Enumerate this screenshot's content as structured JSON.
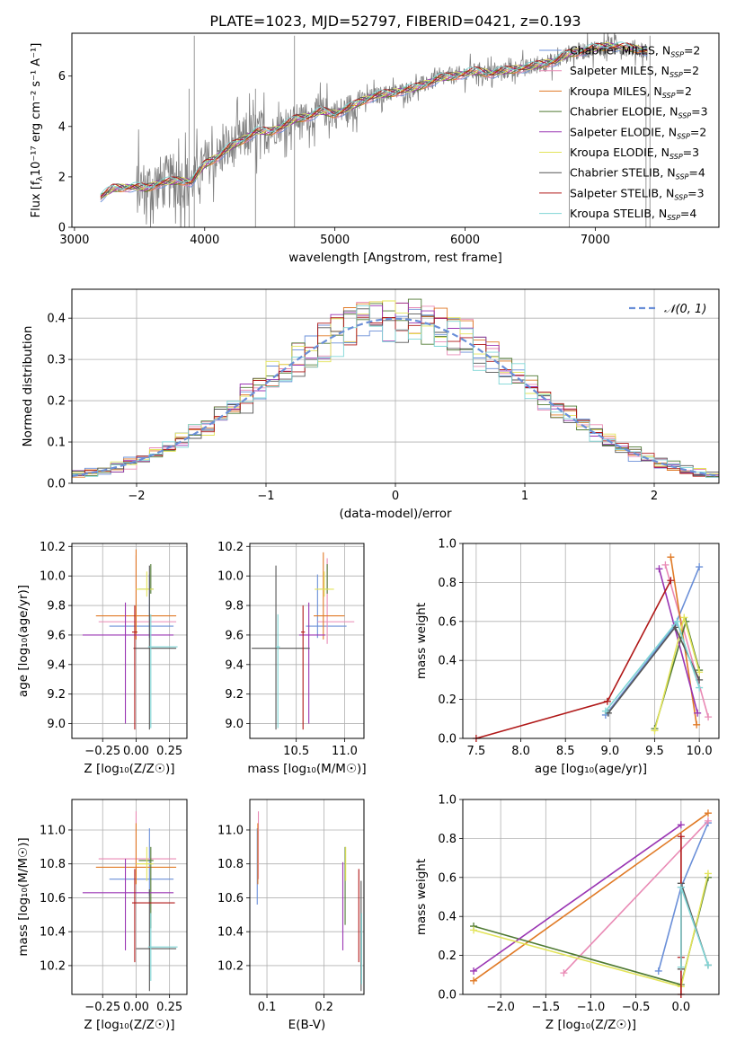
{
  "figure_title": "PLATE=1023, MJD=52797, FIBERID=0421, z=0.193",
  "colors": {
    "Chabrier MILES": "#6a8fd8",
    "Salpeter MILES": "#e98ab5",
    "Kroupa MILES": "#e07a26",
    "Chabrier ELODIE": "#4f7a33",
    "Salpeter ELODIE": "#9a35b3",
    "Kroupa ELODIE": "#e3e45a",
    "Chabrier STELIB": "#555555",
    "Salpeter STELIB": "#b01818",
    "Kroupa STELIB": "#7fd6d6",
    "data": "#808080",
    "normal": "#6a8fd8",
    "light_green": "#a6d854"
  },
  "chart_data": [
    {
      "id": "spectrum",
      "type": "line",
      "title": "PLATE=1023, MJD=52797, FIBERID=0421, z=0.193",
      "xlabel": "wavelength [Angstrom, rest frame]",
      "ylabel_prefix": "Flux [f",
      "ylabel_suffix": "10⁻¹⁷ erg cm⁻² s⁻¹ A⁻¹]",
      "xlim": [
        2980,
        7950
      ],
      "ylim": [
        0,
        7.7
      ],
      "xticks": [
        3000,
        4000,
        5000,
        6000,
        7000
      ],
      "yticks": [
        0,
        2,
        4,
        6
      ],
      "grid": false,
      "legend_position": "top-right",
      "legend": [
        {
          "name": "Chabrier MILES",
          "nssp": "2"
        },
        {
          "name": "Salpeter MILES",
          "nssp": "2"
        },
        {
          "name": "Kroupa MILES",
          "nssp": "2"
        },
        {
          "name": "Chabrier ELODIE",
          "nssp": "3"
        },
        {
          "name": "Salpeter ELODIE",
          "nssp": "2"
        },
        {
          "name": "Kroupa ELODIE",
          "nssp": "3"
        },
        {
          "name": "Chabrier STELIB",
          "nssp": "4"
        },
        {
          "name": "Salpeter STELIB",
          "nssp": "3"
        },
        {
          "name": "Kroupa STELIB",
          "nssp": "4"
        }
      ],
      "continuum": {
        "x": [
          3200,
          3300,
          3450,
          3550,
          3650,
          3800,
          3900,
          4000,
          4100,
          4200,
          4300,
          4400,
          4500,
          4600,
          4700,
          4800,
          4900,
          5000,
          5100,
          5200,
          5300,
          5400,
          5500,
          5600,
          5700,
          5800,
          5900,
          6000,
          6100,
          6200,
          6300,
          6400,
          6500,
          6600,
          6700,
          6800,
          6900,
          7000,
          7100,
          7200,
          7300,
          7400
        ],
        "y": [
          1.2,
          1.55,
          1.6,
          1.55,
          1.75,
          1.85,
          1.8,
          2.5,
          2.8,
          3.2,
          3.5,
          3.8,
          3.8,
          4.0,
          4.3,
          4.4,
          4.6,
          4.5,
          4.7,
          5.0,
          5.2,
          5.3,
          5.4,
          5.5,
          5.7,
          5.9,
          6.0,
          6.1,
          6.2,
          6.1,
          6.2,
          6.3,
          6.35,
          6.5,
          6.6,
          6.9,
          7.0,
          7.1,
          7.2,
          7.15,
          7.1,
          7.0
        ]
      }
    },
    {
      "id": "residuals",
      "type": "step",
      "xlabel": "(data-model)/error",
      "ylabel": "Normed distribution",
      "xlim": [
        -2.5,
        2.5
      ],
      "ylim": [
        0,
        0.47
      ],
      "xticks": [
        -2,
        -1,
        0,
        1,
        2
      ],
      "yticks": [
        0.0,
        0.1,
        0.2,
        0.3,
        0.4
      ],
      "grid": true,
      "legend_position": "top-right",
      "legend_label": "𝒩(0, 1)"
    },
    {
      "id": "age_vs_Z",
      "type": "errorbar",
      "xlabel": "Z [log₁₀(Z/Z☉)]",
      "ylabel": "age  [log₁₀(age/yr)]",
      "xlim": [
        -0.48,
        0.38
      ],
      "ylim": [
        8.9,
        10.22
      ],
      "xticks": [
        -0.25,
        0.0,
        0.25
      ],
      "yticks": [
        9.0,
        9.2,
        9.4,
        9.6,
        9.8,
        10.0,
        10.2
      ],
      "grid": true,
      "points": [
        {
          "model": "Chabrier MILES",
          "x": 0.1,
          "xe": [
            0.3,
            0.18
          ],
          "y": 9.66,
          "ye": [
            0.08,
            0.35
          ]
        },
        {
          "model": "Salpeter MILES",
          "x": 0.0,
          "xe": [
            0.28,
            0.3
          ],
          "y": 9.69,
          "ye": [
            0.1,
            0.45
          ]
        },
        {
          "model": "Kroupa MILES",
          "x": 0.0,
          "xe": [
            0.3,
            0.3
          ],
          "y": 9.73,
          "ye": [
            0.16,
            0.45
          ]
        },
        {
          "model": "Chabrier ELODIE",
          "x": 0.11,
          "xe": [
            0.09,
            0.02
          ],
          "y": 9.91,
          "ye": [
            0.03,
            0.17
          ]
        },
        {
          "model": "Salpeter ELODIE",
          "x": -0.08,
          "xe": [
            0.32,
            0.36
          ],
          "y": 9.6,
          "ye": [
            0.6,
            0.22
          ]
        },
        {
          "model": "Kroupa ELODIE",
          "x": 0.08,
          "xe": [
            0.08,
            0.05
          ],
          "y": 9.91,
          "ye": [
            0.05,
            0.12
          ]
        },
        {
          "model": "Chabrier STELIB",
          "x": 0.1,
          "xe": [
            0.12,
            0.2
          ],
          "y": 9.51,
          "ye": [
            0.55,
            0.56
          ]
        },
        {
          "model": "Salpeter STELIB",
          "x": -0.01,
          "xe": [
            0.02,
            0.02
          ],
          "y": 9.62,
          "ye": [
            0.66,
            0.18
          ]
        },
        {
          "model": "Kroupa STELIB",
          "x": 0.11,
          "xe": [
            0.02,
            0.2
          ],
          "y": 9.52,
          "ye": [
            0.55,
            0.22
          ]
        }
      ]
    },
    {
      "id": "age_vs_mass",
      "type": "errorbar",
      "xlabel": "mass [log₁₀(M/M☉)]",
      "ylabel": "",
      "xlim": [
        10.02,
        11.2
      ],
      "ylim": [
        8.9,
        10.22
      ],
      "xticks": [
        10.5,
        11.0
      ],
      "yticks": [
        9.0,
        9.2,
        9.4,
        9.6,
        9.8,
        10.0,
        10.2
      ],
      "grid": true,
      "points": [
        {
          "model": "Chabrier MILES",
          "x": 10.72,
          "xe": [
            0.12,
            0.3
          ],
          "y": 9.66,
          "ye": [
            0.08,
            0.35
          ]
        },
        {
          "model": "Salpeter MILES",
          "x": 10.82,
          "xe": [
            0.1,
            0.28
          ],
          "y": 9.69,
          "ye": [
            0.15,
            0.43
          ]
        },
        {
          "model": "Kroupa MILES",
          "x": 10.78,
          "xe": [
            0.1,
            0.22
          ],
          "y": 9.73,
          "ye": [
            0.16,
            0.43
          ]
        },
        {
          "model": "Chabrier ELODIE",
          "x": 10.82,
          "xe": [
            0.08,
            0.02
          ],
          "y": 9.91,
          "ye": [
            0.03,
            0.17
          ]
        },
        {
          "model": "Salpeter ELODIE",
          "x": 10.63,
          "xe": [
            0.1,
            0.17
          ],
          "y": 9.6,
          "ye": [
            0.6,
            0.22
          ]
        },
        {
          "model": "Kroupa ELODIE",
          "x": 10.79,
          "xe": [
            0.1,
            0.1
          ],
          "y": 9.91,
          "ye": [
            0.05,
            0.12
          ]
        },
        {
          "model": "Chabrier STELIB",
          "x": 10.29,
          "xe": [
            0.25,
            0.35
          ],
          "y": 9.51,
          "ye": [
            0.55,
            0.56
          ]
        },
        {
          "model": "Salpeter STELIB",
          "x": 10.57,
          "xe": [
            0.02,
            0.02
          ],
          "y": 9.62,
          "ye": [
            0.66,
            0.18
          ]
        },
        {
          "model": "Kroupa STELIB",
          "x": 10.31,
          "xe": [
            0.02,
            0.02
          ],
          "y": 9.52,
          "ye": [
            0.55,
            0.22
          ]
        }
      ]
    },
    {
      "id": "weight_vs_age",
      "type": "line",
      "xlabel": "age  [log₁₀(age/yr)]",
      "ylabel": "mass weight",
      "xlim": [
        7.35,
        10.22
      ],
      "ylim": [
        0,
        1.0
      ],
      "xticks": [
        7.5,
        8.0,
        8.5,
        9.0,
        9.5,
        10.0
      ],
      "yticks": [
        0.0,
        0.2,
        0.4,
        0.6,
        0.8,
        1.0
      ],
      "grid": true,
      "series": [
        {
          "model": "Chabrier MILES",
          "x": [
            8.95,
            9.73,
            10.0
          ],
          "y": [
            0.12,
            0.58,
            0.88
          ]
        },
        {
          "model": "Salpeter MILES",
          "x": [
            9.62,
            10.1
          ],
          "y": [
            0.89,
            0.11
          ]
        },
        {
          "model": "Kroupa MILES",
          "x": [
            9.68,
            9.97
          ],
          "y": [
            0.93,
            0.07
          ]
        },
        {
          "model": "Chabrier ELODIE",
          "x": [
            9.5,
            9.85,
            10.0
          ],
          "y": [
            0.05,
            0.6,
            0.35
          ]
        },
        {
          "model": "Salpeter ELODIE",
          "x": [
            9.55,
            9.98
          ],
          "y": [
            0.87,
            0.13
          ]
        },
        {
          "model": "Kroupa ELODIE",
          "x": [
            9.5,
            9.83,
            10.0
          ],
          "y": [
            0.04,
            0.62,
            0.34
          ]
        },
        {
          "model": "Chabrier STELIB",
          "x": [
            8.98,
            9.73,
            10.0
          ],
          "y": [
            0.13,
            0.57,
            0.3
          ]
        },
        {
          "model": "Salpeter STELIB",
          "x": [
            7.5,
            8.97,
            9.68
          ],
          "y": [
            0.0,
            0.19,
            0.81
          ]
        },
        {
          "model": "Kroupa STELIB",
          "x": [
            8.95,
            9.75,
            10.0
          ],
          "y": [
            0.14,
            0.6,
            0.26
          ]
        }
      ]
    },
    {
      "id": "mass_vs_Z",
      "type": "errorbar",
      "xlabel": "Z [log₁₀(Z/Z☉)]",
      "ylabel": "mass [log₁₀(M/M☉)]",
      "xlim": [
        -0.48,
        0.38
      ],
      "ylim": [
        10.03,
        11.18
      ],
      "xticks": [
        -0.25,
        0.0,
        0.25
      ],
      "yticks": [
        10.2,
        10.4,
        10.6,
        10.8,
        11.0
      ],
      "grid": true,
      "points": [
        {
          "model": "Chabrier MILES",
          "x": 0.1,
          "xe": [
            0.3,
            0.18
          ],
          "y": 10.71,
          "ye": [
            0.1,
            0.3
          ]
        },
        {
          "model": "Salpeter MILES",
          "x": 0.0,
          "xe": [
            0.28,
            0.3
          ],
          "y": 10.83,
          "ye": [
            0.1,
            0.28
          ]
        },
        {
          "model": "Kroupa MILES",
          "x": 0.0,
          "xe": [
            0.3,
            0.3
          ],
          "y": 10.78,
          "ye": [
            0.1,
            0.26
          ]
        },
        {
          "model": "Chabrier ELODIE",
          "x": 0.11,
          "xe": [
            0.09,
            0.02
          ],
          "y": 10.82,
          "ye": [
            0.4,
            0.08
          ]
        },
        {
          "model": "Salpeter ELODIE",
          "x": -0.08,
          "xe": [
            0.32,
            0.36
          ],
          "y": 10.63,
          "ye": [
            0.34,
            0.2
          ]
        },
        {
          "model": "Kroupa ELODIE",
          "x": 0.08,
          "xe": [
            0.08,
            0.05
          ],
          "y": 10.8,
          "ye": [
            0.1,
            0.1
          ]
        },
        {
          "model": "Chabrier STELIB",
          "x": 0.1,
          "xe": [
            0.1,
            0.2
          ],
          "y": 10.3,
          "ye": [
            0.25,
            0.35
          ]
        },
        {
          "model": "Salpeter STELIB",
          "x": -0.01,
          "xe": [
            0.02,
            0.3
          ],
          "y": 10.57,
          "ye": [
            0.35,
            0.2
          ]
        },
        {
          "model": "Kroupa STELIB",
          "x": 0.11,
          "xe": [
            0.02,
            0.2
          ],
          "y": 10.31,
          "ye": [
            0.2,
            0.2
          ]
        }
      ]
    },
    {
      "id": "mass_vs_ebv",
      "type": "errorbar",
      "xlabel": "E(B-V)",
      "ylabel": "",
      "xlim": [
        0.07,
        0.27
      ],
      "ylim": [
        10.03,
        11.18
      ],
      "xticks": [
        0.1,
        0.2
      ],
      "yticks": [
        10.2,
        10.4,
        10.6,
        10.8,
        11.0
      ],
      "grid": true,
      "points": [
        {
          "model": "Chabrier MILES",
          "x": 0.083,
          "y": 10.71,
          "ye": [
            0.15,
            0.3
          ]
        },
        {
          "model": "Salpeter MILES",
          "x": 0.085,
          "y": 10.83,
          "ye": [
            0.12,
            0.28
          ]
        },
        {
          "model": "Kroupa MILES",
          "x": 0.084,
          "y": 10.78,
          "ye": [
            0.1,
            0.26
          ]
        },
        {
          "model": "Chabrier ELODIE",
          "x": 0.237,
          "y": 10.82,
          "ye": [
            0.38,
            0.08
          ]
        },
        {
          "model": "Salpeter ELODIE",
          "x": 0.233,
          "y": 10.63,
          "ye": [
            0.34,
            0.18
          ]
        },
        {
          "model": "Kroupa ELODIE",
          "x": 0.238,
          "y": 10.8,
          "ye": [
            0.1,
            0.1
          ]
        },
        {
          "model": "Chabrier STELIB",
          "x": 0.265,
          "y": 10.4,
          "ye": [
            0.35,
            0.3
          ]
        },
        {
          "model": "Salpeter STELIB",
          "x": 0.261,
          "y": 10.57,
          "ye": [
            0.35,
            0.2
          ]
        },
        {
          "model": "Kroupa STELIB",
          "x": 0.266,
          "y": 10.31,
          "ye": [
            0.22,
            0.2
          ]
        }
      ]
    },
    {
      "id": "weight_vs_Z",
      "type": "line",
      "xlabel": "Z [log₁₀(Z/Z☉)]",
      "ylabel": "mass weight",
      "xlim": [
        -2.42,
        0.42
      ],
      "ylim": [
        0,
        1.0
      ],
      "xticks": [
        -2.0,
        -1.5,
        -1.0,
        -0.5,
        0.0
      ],
      "yticks": [
        0.0,
        0.2,
        0.4,
        0.6,
        0.8,
        1.0
      ],
      "grid": true,
      "series": [
        {
          "model": "Chabrier MILES",
          "x": [
            -0.25,
            0.0,
            0.3
          ],
          "y": [
            0.12,
            0.55,
            0.88
          ]
        },
        {
          "model": "Salpeter MILES",
          "x": [
            -1.3,
            0.3
          ],
          "y": [
            0.11,
            0.89
          ]
        },
        {
          "model": "Kroupa MILES",
          "x": [
            -2.3,
            0.3
          ],
          "y": [
            0.07,
            0.93
          ]
        },
        {
          "model": "Chabrier ELODIE",
          "x": [
            -2.3,
            0.0,
            0.3
          ],
          "y": [
            0.35,
            0.05,
            0.6
          ]
        },
        {
          "model": "Salpeter ELODIE",
          "x": [
            -2.3,
            0.0
          ],
          "y": [
            0.12,
            0.87
          ]
        },
        {
          "model": "Kroupa ELODIE",
          "x": [
            -2.3,
            0.0,
            0.3
          ],
          "y": [
            0.33,
            0.04,
            0.62
          ]
        },
        {
          "model": "Chabrier STELIB",
          "x": [
            0.0,
            0.0,
            0.3
          ],
          "y": [
            0.13,
            0.57,
            0.15
          ]
        },
        {
          "model": "Salpeter STELIB",
          "x": [
            0.0,
            0.0,
            0.0
          ],
          "y": [
            0.0,
            0.19,
            0.81
          ]
        },
        {
          "model": "Kroupa STELIB",
          "x": [
            0.0,
            0.0,
            0.3
          ],
          "y": [
            0.14,
            0.55,
            0.15
          ]
        }
      ]
    }
  ]
}
